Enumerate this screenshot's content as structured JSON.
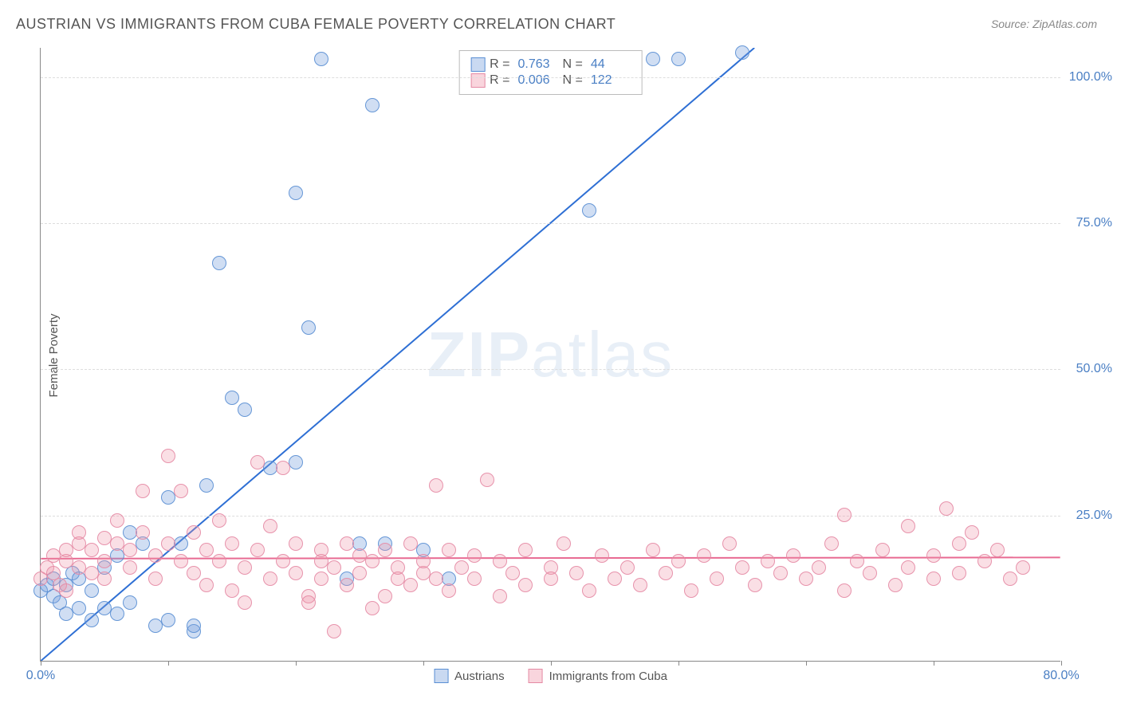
{
  "title": "AUSTRIAN VS IMMIGRANTS FROM CUBA FEMALE POVERTY CORRELATION CHART",
  "source": "Source: ZipAtlas.com",
  "ylabel": "Female Poverty",
  "watermark_bold": "ZIP",
  "watermark_light": "atlas",
  "chart": {
    "type": "scatter",
    "xlim": [
      0,
      80
    ],
    "ylim": [
      0,
      105
    ],
    "xticks": [
      0,
      10,
      20,
      30,
      40,
      50,
      60,
      70,
      80
    ],
    "xtick_labels": {
      "0": "0.0%",
      "80": "80.0%"
    },
    "yticks": [
      25,
      50,
      75,
      100
    ],
    "ytick_labels": {
      "25": "25.0%",
      "50": "50.0%",
      "75": "75.0%",
      "100": "100.0%"
    },
    "grid_color": "#dddddd",
    "axis_color": "#888888",
    "background_color": "#ffffff",
    "tick_label_color": "#4a7fc4",
    "marker_size": 18,
    "series": [
      {
        "name": "Austrians",
        "color_fill": "rgba(120,160,220,0.35)",
        "color_stroke": "#5a8fd4",
        "R": "0.763",
        "N": "44",
        "trend": {
          "x0": 0,
          "y0": 0,
          "x1": 56,
          "y1": 105,
          "color": "#2e6fd4",
          "width": 2
        },
        "points": [
          [
            0,
            12
          ],
          [
            0.5,
            13
          ],
          [
            1,
            11
          ],
          [
            1,
            14
          ],
          [
            1.5,
            10
          ],
          [
            2,
            13
          ],
          [
            2,
            8
          ],
          [
            2.5,
            15
          ],
          [
            3,
            9
          ],
          [
            3,
            14
          ],
          [
            4,
            7
          ],
          [
            4,
            12
          ],
          [
            5,
            16
          ],
          [
            5,
            9
          ],
          [
            6,
            8
          ],
          [
            6,
            18
          ],
          [
            7,
            10
          ],
          [
            7,
            22
          ],
          [
            8,
            20
          ],
          [
            9,
            6
          ],
          [
            10,
            7
          ],
          [
            10,
            28
          ],
          [
            11,
            20
          ],
          [
            12,
            5
          ],
          [
            12,
            6
          ],
          [
            13,
            30
          ],
          [
            14,
            68
          ],
          [
            15,
            45
          ],
          [
            16,
            43
          ],
          [
            18,
            33
          ],
          [
            20,
            34
          ],
          [
            20,
            80
          ],
          [
            21,
            57
          ],
          [
            22,
            103
          ],
          [
            24,
            14
          ],
          [
            25,
            20
          ],
          [
            26,
            95
          ],
          [
            27,
            20
          ],
          [
            30,
            19
          ],
          [
            32,
            14
          ],
          [
            43,
            77
          ],
          [
            48,
            103
          ],
          [
            50,
            103
          ],
          [
            55,
            104
          ]
        ]
      },
      {
        "name": "Immigrants from Cuba",
        "color_fill": "rgba(240,150,170,0.30)",
        "color_stroke": "#e48aa4",
        "R": "0.006",
        "N": "122",
        "trend": {
          "x0": 0,
          "y0": 17.5,
          "x1": 80,
          "y1": 17.7,
          "color": "#e86a92",
          "width": 2
        },
        "points": [
          [
            0,
            14
          ],
          [
            0.5,
            16
          ],
          [
            1,
            15
          ],
          [
            1,
            18
          ],
          [
            1.5,
            13
          ],
          [
            2,
            17
          ],
          [
            2,
            19
          ],
          [
            2,
            12
          ],
          [
            3,
            20
          ],
          [
            3,
            16
          ],
          [
            3,
            22
          ],
          [
            4,
            15
          ],
          [
            4,
            19
          ],
          [
            5,
            21
          ],
          [
            5,
            17
          ],
          [
            5,
            14
          ],
          [
            6,
            20
          ],
          [
            6,
            24
          ],
          [
            7,
            16
          ],
          [
            7,
            19
          ],
          [
            8,
            22
          ],
          [
            8,
            29
          ],
          [
            9,
            14
          ],
          [
            9,
            18
          ],
          [
            10,
            35
          ],
          [
            10,
            20
          ],
          [
            11,
            17
          ],
          [
            11,
            29
          ],
          [
            12,
            15
          ],
          [
            12,
            22
          ],
          [
            13,
            19
          ],
          [
            13,
            13
          ],
          [
            14,
            24
          ],
          [
            14,
            17
          ],
          [
            15,
            12
          ],
          [
            15,
            20
          ],
          [
            16,
            10
          ],
          [
            16,
            16
          ],
          [
            17,
            34
          ],
          [
            17,
            19
          ],
          [
            18,
            14
          ],
          [
            18,
            23
          ],
          [
            19,
            17
          ],
          [
            19,
            33
          ],
          [
            20,
            20
          ],
          [
            20,
            15
          ],
          [
            21,
            11
          ],
          [
            21,
            10
          ],
          [
            22,
            17
          ],
          [
            22,
            14
          ],
          [
            22,
            19
          ],
          [
            23,
            5
          ],
          [
            23,
            16
          ],
          [
            24,
            20
          ],
          [
            24,
            13
          ],
          [
            25,
            18
          ],
          [
            25,
            15
          ],
          [
            26,
            17
          ],
          [
            26,
            9
          ],
          [
            27,
            11
          ],
          [
            27,
            19
          ],
          [
            28,
            14
          ],
          [
            28,
            16
          ],
          [
            29,
            20
          ],
          [
            29,
            13
          ],
          [
            30,
            15
          ],
          [
            30,
            17
          ],
          [
            31,
            30
          ],
          [
            31,
            14
          ],
          [
            32,
            12
          ],
          [
            32,
            19
          ],
          [
            33,
            16
          ],
          [
            34,
            18
          ],
          [
            34,
            14
          ],
          [
            35,
            31
          ],
          [
            36,
            11
          ],
          [
            36,
            17
          ],
          [
            37,
            15
          ],
          [
            38,
            19
          ],
          [
            38,
            13
          ],
          [
            40,
            16
          ],
          [
            40,
            14
          ],
          [
            41,
            20
          ],
          [
            42,
            15
          ],
          [
            43,
            12
          ],
          [
            44,
            18
          ],
          [
            45,
            14
          ],
          [
            46,
            16
          ],
          [
            47,
            13
          ],
          [
            48,
            19
          ],
          [
            49,
            15
          ],
          [
            50,
            17
          ],
          [
            51,
            12
          ],
          [
            52,
            18
          ],
          [
            53,
            14
          ],
          [
            54,
            20
          ],
          [
            55,
            16
          ],
          [
            56,
            13
          ],
          [
            57,
            17
          ],
          [
            58,
            15
          ],
          [
            59,
            18
          ],
          [
            60,
            14
          ],
          [
            61,
            16
          ],
          [
            62,
            20
          ],
          [
            63,
            12
          ],
          [
            63,
            25
          ],
          [
            64,
            17
          ],
          [
            65,
            15
          ],
          [
            66,
            19
          ],
          [
            67,
            13
          ],
          [
            68,
            23
          ],
          [
            68,
            16
          ],
          [
            70,
            18
          ],
          [
            70,
            14
          ],
          [
            71,
            26
          ],
          [
            72,
            20
          ],
          [
            72,
            15
          ],
          [
            73,
            22
          ],
          [
            74,
            17
          ],
          [
            75,
            19
          ],
          [
            76,
            14
          ],
          [
            77,
            16
          ]
        ]
      }
    ],
    "legend_bottom": [
      {
        "swatch": "blue",
        "label": "Austrians"
      },
      {
        "swatch": "pink",
        "label": "Immigrants from Cuba"
      }
    ]
  }
}
